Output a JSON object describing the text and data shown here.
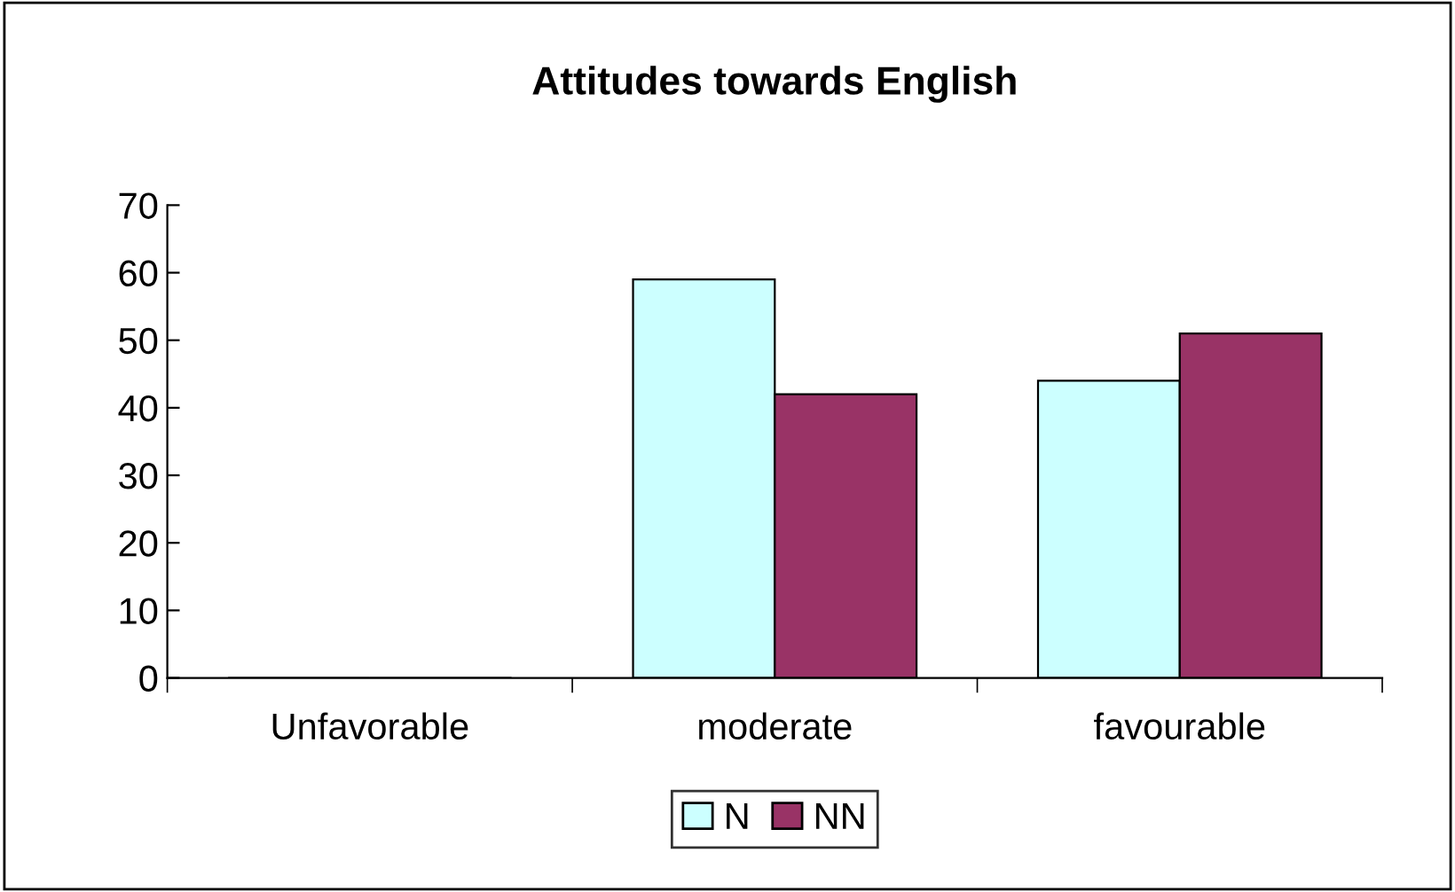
{
  "chart_data": {
    "type": "bar",
    "title": "Attitudes towards English",
    "categories": [
      "Unfavorable",
      "moderate",
      "favourable"
    ],
    "series": [
      {
        "name": "N",
        "color": "#ccffff",
        "values": [
          0,
          59,
          44
        ]
      },
      {
        "name": "NN",
        "color": "#993366",
        "values": [
          0,
          42,
          51
        ]
      }
    ],
    "ylim": [
      0,
      70
    ],
    "yticks": [
      0,
      10,
      20,
      30,
      40,
      50,
      60,
      70
    ],
    "grid": false,
    "legend": "bottom"
  }
}
